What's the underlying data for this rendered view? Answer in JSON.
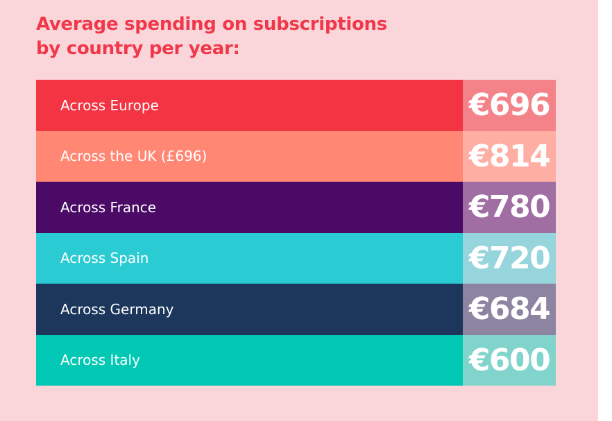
{
  "chart_data": {
    "type": "table",
    "title": "Average spending on subscriptions by country per year:",
    "title_lines": [
      "Average spending on subscriptions",
      "by country per year:"
    ],
    "rows": [
      {
        "label": "Across Europe",
        "value": "€696",
        "amount": 696,
        "color": "#f23443",
        "value_color": "#f48289"
      },
      {
        "label": "Across the UK (£696)",
        "value": "€814",
        "amount": 814,
        "color": "#ff8774",
        "value_color": "#ffaea3"
      },
      {
        "label": "Across France",
        "value": "€780",
        "amount": 780,
        "color": "#4a0a66",
        "value_color": "#a06ea3"
      },
      {
        "label": "Across Spain",
        "value": "€720",
        "amount": 720,
        "color": "#2bcbd3",
        "value_color": "#96d5dc"
      },
      {
        "label": "Across Germany",
        "value": "€684",
        "amount": 684,
        "color": "#1c365c",
        "value_color": "#8d84a2"
      },
      {
        "label": "Across Italy",
        "value": "€600",
        "amount": 600,
        "color": "#00c8b5",
        "value_color": "#80d4cb"
      }
    ]
  },
  "colors": {
    "background": "#fad6da",
    "title": "#f0384a"
  }
}
